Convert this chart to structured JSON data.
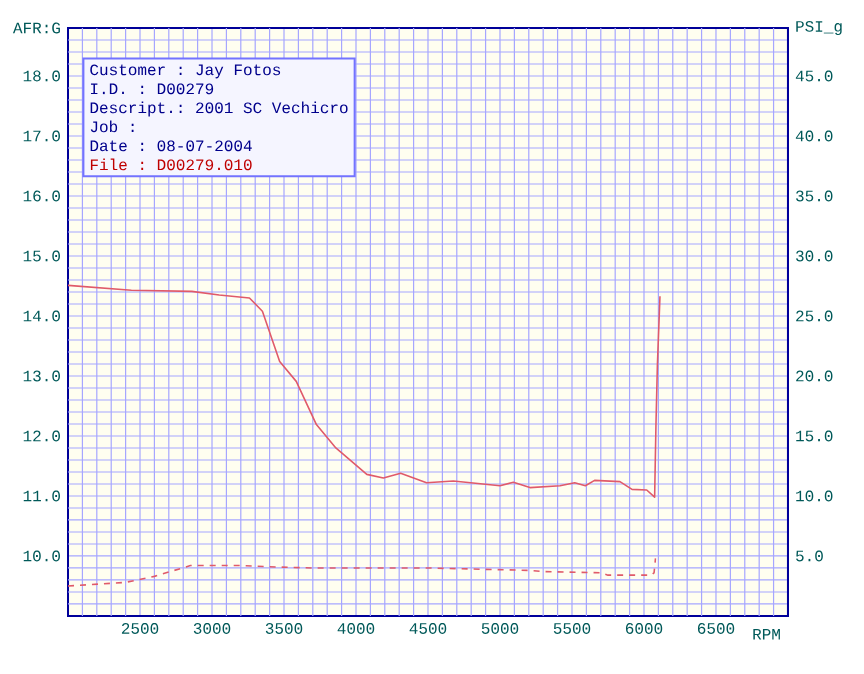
{
  "chart_data": {
    "type": "line",
    "ylabel": "AFR:G",
    "y2label": "PSI_g",
    "xlabel": "RPM",
    "annotations": [
      "Customer : Jay Fotos",
      "I.D. : D00279",
      "Descript.: 2001 SC Vechicro",
      "Job :",
      "Date : 08-07-2004",
      "File : D00279.010"
    ],
    "xlim": [
      2000,
      7000
    ],
    "xticks": [
      {
        "value": 2100,
        "label": null
      },
      {
        "value": 2200,
        "label": null
      },
      {
        "value": 2300,
        "label": null
      },
      {
        "value": 2400,
        "label": null
      },
      2500,
      {
        "value": 2600,
        "label": null
      },
      {
        "value": 2700,
        "label": null
      },
      {
        "value": 2800,
        "label": null
      },
      {
        "value": 2900,
        "label": null
      },
      3000,
      {
        "value": 3100,
        "label": null
      },
      {
        "value": 3200,
        "label": null
      },
      {
        "value": 3300,
        "label": null
      },
      {
        "value": 3400,
        "label": null
      },
      3500,
      {
        "value": 3600,
        "label": null
      },
      {
        "value": 3700,
        "label": null
      },
      {
        "value": 3800,
        "label": null
      },
      {
        "value": 3900,
        "label": null
      },
      4000,
      {
        "value": 4100,
        "label": null
      },
      {
        "value": 4200,
        "label": null
      },
      {
        "value": 4300,
        "label": null
      },
      {
        "value": 4400,
        "label": null
      },
      4500,
      {
        "value": 4600,
        "label": null
      },
      {
        "value": 4700,
        "label": null
      },
      {
        "value": 4800,
        "label": null
      },
      {
        "value": 4900,
        "label": null
      },
      5000,
      {
        "value": 5100,
        "label": null
      },
      {
        "value": 5200,
        "label": null
      },
      {
        "value": 5300,
        "label": null
      },
      {
        "value": 5400,
        "label": null
      },
      5500,
      {
        "value": 5600,
        "label": null
      },
      {
        "value": 5700,
        "label": null
      },
      {
        "value": 5800,
        "label": null
      },
      {
        "value": 5900,
        "label": null
      },
      6000,
      {
        "value": 6100,
        "label": null
      },
      {
        "value": 6200,
        "label": null
      },
      {
        "value": 6300,
        "label": null
      },
      {
        "value": 6400,
        "label": null
      },
      6500,
      {
        "value": 6600,
        "label": null
      },
      {
        "value": 6700,
        "label": null
      },
      {
        "value": 6800,
        "label": null
      },
      {
        "value": 6900,
        "label": null
      }
    ],
    "ylim": [
      9,
      18.8
    ],
    "yticks": [
      {
        "value": 9.2,
        "label": null
      },
      {
        "value": 9.4,
        "label": null
      },
      {
        "value": 9.6,
        "label": null
      },
      {
        "value": 9.8,
        "label": null
      },
      {
        "value": 10,
        "label": "10.0"
      },
      {
        "value": 10.2,
        "label": null
      },
      {
        "value": 10.4,
        "label": null
      },
      {
        "value": 10.6,
        "label": null
      },
      {
        "value": 10.8,
        "label": null
      },
      {
        "value": 11,
        "label": "11.0"
      },
      {
        "value": 11.2,
        "label": null
      },
      {
        "value": 11.4,
        "label": null
      },
      {
        "value": 11.6,
        "label": null
      },
      {
        "value": 11.8,
        "label": null
      },
      {
        "value": 12,
        "label": "12.0"
      },
      {
        "value": 12.2,
        "label": null
      },
      {
        "value": 12.4,
        "label": null
      },
      {
        "value": 12.6,
        "label": null
      },
      {
        "value": 12.8,
        "label": null
      },
      {
        "value": 13,
        "label": "13.0"
      },
      {
        "value": 13.2,
        "label": null
      },
      {
        "value": 13.4,
        "label": null
      },
      {
        "value": 13.6,
        "label": null
      },
      {
        "value": 13.8,
        "label": null
      },
      {
        "value": 14,
        "label": "14.0"
      },
      {
        "value": 14.2,
        "label": null
      },
      {
        "value": 14.4,
        "label": null
      },
      {
        "value": 14.6,
        "label": null
      },
      {
        "value": 14.8,
        "label": null
      },
      {
        "value": 15,
        "label": "15.0"
      },
      {
        "value": 15.2,
        "label": null
      },
      {
        "value": 15.4,
        "label": null
      },
      {
        "value": 15.6,
        "label": null
      },
      {
        "value": 15.8,
        "label": null
      },
      {
        "value": 16,
        "label": "16.0"
      },
      {
        "value": 16.2,
        "label": null
      },
      {
        "value": 16.4,
        "label": null
      },
      {
        "value": 16.6,
        "label": null
      },
      {
        "value": 16.8,
        "label": null
      },
      {
        "value": 17,
        "label": "17.0"
      },
      {
        "value": 17.2,
        "label": null
      },
      {
        "value": 17.4,
        "label": null
      },
      {
        "value": 17.6,
        "label": null
      },
      {
        "value": 17.8,
        "label": null
      },
      {
        "value": 18,
        "label": "18.0"
      },
      {
        "value": 18.2,
        "label": null
      },
      {
        "value": 18.4,
        "label": null
      },
      {
        "value": 18.6,
        "label": null
      }
    ],
    "y2lim": [
      0,
      49
    ],
    "y2ticks": [
      {
        "value": 5,
        "label": "5.0"
      },
      {
        "value": 10,
        "label": "10.0"
      },
      {
        "value": 15,
        "label": "15.0"
      },
      {
        "value": 20,
        "label": "20.0"
      },
      {
        "value": 25,
        "label": "25.0"
      },
      {
        "value": 30,
        "label": "30.0"
      },
      {
        "value": 35,
        "label": "35.0"
      },
      {
        "value": 40,
        "label": "40.0"
      },
      {
        "value": 45,
        "label": "45.0"
      }
    ],
    "grid": true,
    "marker": "none",
    "series": [
      {
        "color": "#e05a6a",
        "line_style": "solid",
        "axis": "y",
        "x": [
          2000,
          2440,
          2860,
          3050,
          3260,
          3350,
          3470,
          3585,
          3725,
          3860,
          4075,
          4190,
          4310,
          4490,
          4676,
          5000,
          5093,
          5208,
          5417,
          5519,
          5593,
          5657,
          5833,
          5917,
          6019,
          6074,
          6083,
          6093,
          6111
        ],
        "values": [
          14.51,
          14.43,
          14.41,
          14.35,
          14.3,
          14.08,
          13.24,
          12.91,
          12.19,
          11.8,
          11.36,
          11.3,
          11.38,
          11.22,
          11.25,
          11.17,
          11.23,
          11.14,
          11.17,
          11.22,
          11.17,
          11.26,
          11.24,
          11.11,
          11.1,
          10.98,
          12.17,
          13.17,
          14.33
        ]
      },
      {
        "color": "#e05a6a",
        "line_style": "dashed",
        "axis": "y2",
        "x": [
          2000,
          2400,
          2600,
          2850,
          3200,
          3400,
          3700,
          4500,
          5200,
          5300,
          5700,
          5750,
          6050,
          6070,
          6080
        ],
        "values": [
          2.5,
          2.8,
          3.3,
          4.2,
          4.2,
          4.1,
          4.0,
          4.0,
          3.8,
          3.7,
          3.6,
          3.4,
          3.4,
          3.6,
          4.8
        ]
      }
    ]
  }
}
